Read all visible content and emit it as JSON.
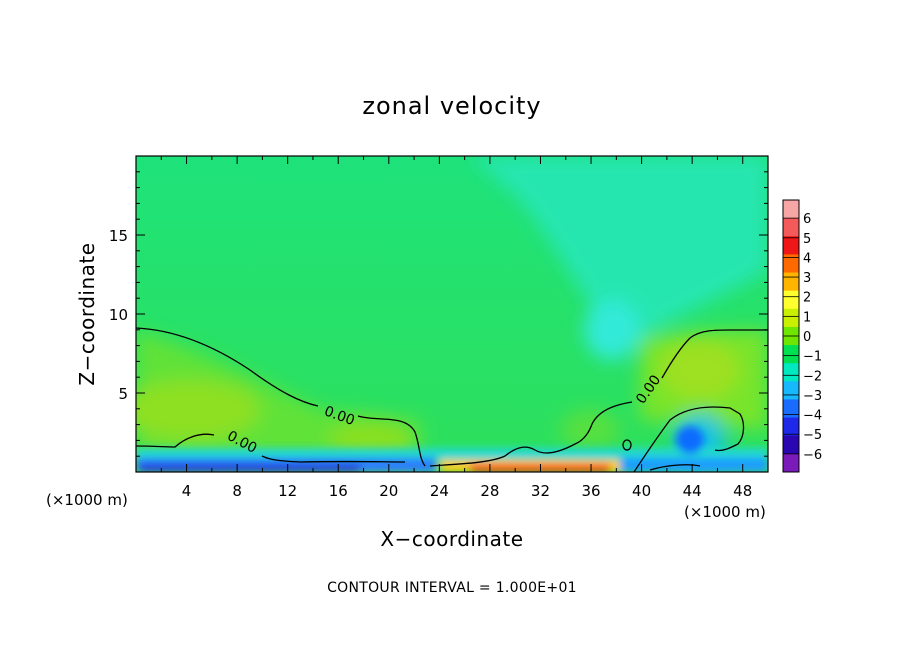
{
  "chart_data": {
    "type": "heatmap",
    "title": "zonal velocity",
    "xlabel": "X−coordinate",
    "ylabel": "Z−coordinate",
    "x_unit_left": "(×1000 m)",
    "x_unit_right": "(×1000 m)",
    "xlim": [
      0,
      50
    ],
    "ylim": [
      0,
      20
    ],
    "x_ticks": [
      4,
      8,
      12,
      16,
      20,
      24,
      28,
      32,
      36,
      40,
      44,
      48
    ],
    "x_tick_labels": [
      "4",
      "8",
      "12",
      "16",
      "20",
      "24",
      "28",
      "32",
      "36",
      "40",
      "44",
      "48"
    ],
    "y_ticks": [
      5,
      10,
      15
    ],
    "y_tick_labels": [
      "5",
      "10",
      "15"
    ],
    "colorbar": {
      "levels": [
        6,
        5,
        4,
        3,
        2,
        1,
        0,
        -1,
        -2,
        -3,
        -4,
        -5,
        -6
      ],
      "labels": [
        "6",
        "5",
        "4",
        "3",
        "2",
        "1",
        "0",
        "−1",
        "−2",
        "−3",
        "−4",
        "−5",
        "−6"
      ],
      "colors": [
        "#f7a6a6",
        "#f55a5a",
        "#ee1616",
        "#ff6a00",
        "#ffb400",
        "#ffff30",
        "#c8f000",
        "#6ee600",
        "#00e050",
        "#00e8c0",
        "#18b8ff",
        "#1a6cff",
        "#1e28e8",
        "#2a06b0",
        "#7a1ab8"
      ]
    },
    "contour_label": "0.00",
    "contour_labels": [
      "0.00",
      "0.00",
      "0.00"
    ],
    "note": "CONTOUR INTERVAL = 1.000E+01",
    "grid": false
  }
}
